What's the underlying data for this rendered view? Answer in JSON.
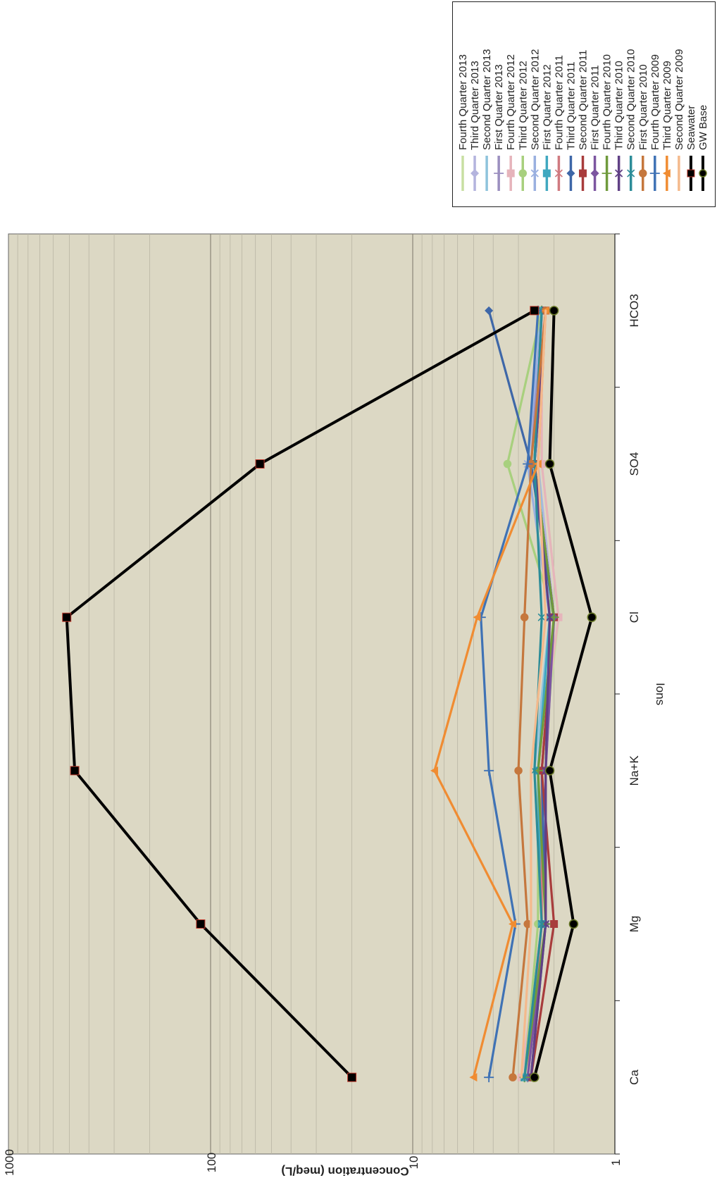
{
  "chart_data": {
    "type": "line",
    "orientation": "rotated-90-clockwise",
    "xlabel": "Ions",
    "ylabel": "Concentration (meq/L)",
    "yscale": "log",
    "ylim": [
      1,
      1000
    ],
    "yticks": [
      "1",
      "10",
      "100",
      "1000"
    ],
    "categories": [
      "Ca",
      "Mg",
      "Na+K",
      "Cl",
      "SO4",
      "HCO3"
    ],
    "grid": true,
    "legend_position": "right",
    "background": "#dcd8c4",
    "series": [
      {
        "name": "Fourth Quarter 2013",
        "color": "#c8dfa2",
        "marker": "minus",
        "values": [
          2.8,
          2.3,
          2.3,
          1.9,
          2.3,
          2.4
        ]
      },
      {
        "name": "Third Quarter 2013",
        "color": "#b4b4de",
        "marker": "diamond",
        "values": [
          2.6,
          2.2,
          2.3,
          2.0,
          2.4,
          2.3
        ]
      },
      {
        "name": "Second Quarter 2013",
        "color": "#8ec3dc",
        "marker": "minus",
        "values": [
          2.7,
          2.3,
          2.5,
          2.1,
          2.4,
          2.4
        ]
      },
      {
        "name": "First Quarter 2013",
        "color": "#9b8fbf",
        "marker": "plus",
        "values": [
          2.7,
          2.2,
          2.2,
          2.0,
          2.6,
          2.3
        ]
      },
      {
        "name": "Fourth Quarter 2012",
        "color": "#e6b4bb",
        "marker": "square",
        "values": [
          2.9,
          2.3,
          2.4,
          1.9,
          2.3,
          2.3
        ]
      },
      {
        "name": "Third Quarter 2012",
        "color": "#a8d07e",
        "marker": "circle",
        "values": [
          2.8,
          2.4,
          2.4,
          2.0,
          3.4,
          2.3
        ]
      },
      {
        "name": "Second Quarter 2012",
        "color": "#9ab0e0",
        "marker": "x",
        "values": [
          2.7,
          2.3,
          2.4,
          2.1,
          2.7,
          2.3
        ]
      },
      {
        "name": "First Quarter 2012",
        "color": "#40a8c0",
        "marker": "square",
        "values": [
          2.8,
          2.3,
          2.4,
          2.1,
          2.5,
          2.3
        ]
      },
      {
        "name": "Fourth Quarter 2011",
        "color": "#d07a80",
        "marker": "asterisk",
        "values": [
          2.7,
          2.3,
          2.3,
          2.0,
          2.5,
          2.3
        ]
      },
      {
        "name": "Third Quarter 2011",
        "color": "#3e67a8",
        "marker": "diamond",
        "values": [
          2.6,
          2.2,
          2.3,
          2.0,
          2.6,
          4.2
        ]
      },
      {
        "name": "Second Quarter 2011",
        "color": "#a83c3c",
        "marker": "square",
        "values": [
          2.6,
          2.0,
          2.3,
          2.0,
          2.5,
          2.2
        ]
      },
      {
        "name": "First Quarter 2011",
        "color": "#7c55a0",
        "marker": "diamond",
        "values": [
          2.7,
          2.2,
          2.2,
          2.0,
          2.5,
          2.2
        ]
      },
      {
        "name": "Fourth Quarter 2010",
        "color": "#6f9a3c",
        "marker": "plus",
        "values": [
          2.8,
          2.2,
          2.4,
          2.0,
          2.5,
          2.3
        ]
      },
      {
        "name": "Third Quarter 2010",
        "color": "#604085",
        "marker": "x",
        "values": [
          2.6,
          2.2,
          2.2,
          2.1,
          2.5,
          2.2
        ]
      },
      {
        "name": "Second Quarter 2010",
        "color": "#2c8c98",
        "marker": "asterisk",
        "values": [
          2.8,
          2.3,
          2.5,
          2.3,
          2.5,
          2.3
        ]
      },
      {
        "name": "First Quarter 2010",
        "color": "#c5773d",
        "marker": "circle",
        "values": [
          3.2,
          2.7,
          3.0,
          2.8,
          2.6,
          2.2
        ]
      },
      {
        "name": "Fourth Quarter 2009",
        "color": "#3f72b5",
        "marker": "plus",
        "values": [
          4.2,
          3.1,
          4.2,
          4.6,
          2.7,
          2.4
        ]
      },
      {
        "name": "Third Quarter 2009",
        "color": "#f08c32",
        "marker": "triangle",
        "values": [
          5.0,
          3.2,
          7.8,
          4.8,
          2.4,
          2.2
        ]
      },
      {
        "name": "Second Quarter 2009",
        "color": "#f4b98c",
        "marker": "none",
        "values": [
          2.9,
          2.6,
          2.6,
          2.2,
          2.4,
          2.2
        ]
      },
      {
        "name": "Seawater",
        "color": "#000000",
        "marker": "square",
        "values": [
          20,
          112,
          470,
          515,
          57,
          2.5
        ]
      },
      {
        "name": "GW Base",
        "color": "#000000",
        "marker": "circle",
        "values": [
          2.5,
          1.6,
          2.1,
          1.3,
          2.1,
          2.0
        ]
      }
    ]
  }
}
